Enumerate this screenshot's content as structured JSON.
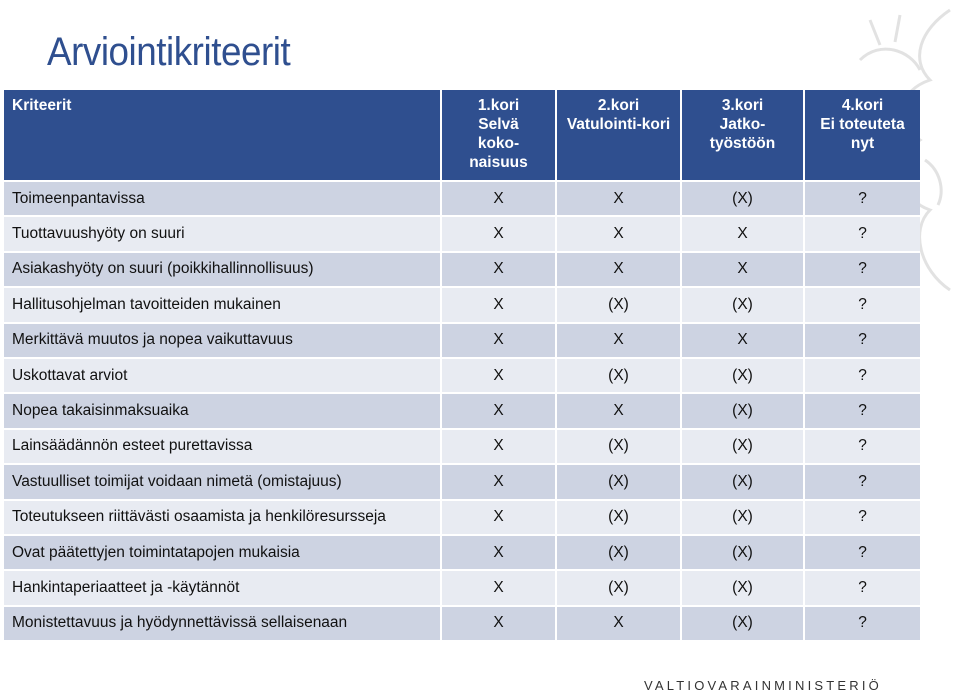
{
  "title": "Arviointikriteerit",
  "table": {
    "header": [
      [
        "Kriteerit"
      ],
      [
        "1.kori",
        "Selvä",
        "koko-",
        "naisuus"
      ],
      [
        "2.kori",
        "Vatulointi-kori"
      ],
      [
        "3.kori",
        "Jatko-",
        "työstöön"
      ],
      [
        "4.kori",
        "Ei toteuteta",
        "nyt"
      ]
    ],
    "rows": [
      [
        "Toimeenpantavissa",
        "X",
        "X",
        "(X)",
        "?"
      ],
      [
        "Tuottavuushyöty on suuri",
        "X",
        "X",
        "X",
        "?"
      ],
      [
        "Asiakashyöty on suuri (poikkihallinnollisuus)",
        "X",
        "X",
        "X",
        "?"
      ],
      [
        "Hallitusohjelman tavoitteiden mukainen",
        "X",
        "(X)",
        "(X)",
        "?"
      ],
      [
        "Merkittävä muutos ja nopea vaikuttavuus",
        "X",
        "X",
        "X",
        "?"
      ],
      [
        "Uskottavat arviot",
        "X",
        "(X)",
        "(X)",
        "?"
      ],
      [
        "Nopea takaisinmaksuaika",
        "X",
        "X",
        "(X)",
        "?"
      ],
      [
        "Lainsäädännön esteet purettavissa",
        "X",
        "(X)",
        "(X)",
        "?"
      ],
      [
        "Vastuulliset toimijat voidaan nimetä (omistajuus)",
        "X",
        "(X)",
        "(X)",
        "?"
      ],
      [
        "Toteutukseen riittävästi osaamista ja henkilöresursseja",
        "X",
        "(X)",
        "(X)",
        "?"
      ],
      [
        "Ovat päätettyjen toimintatapojen mukaisia",
        "X",
        "(X)",
        "(X)",
        "?"
      ],
      [
        "Hankintaperiaatteet ja -käytännöt",
        "X",
        "(X)",
        "(X)",
        "?"
      ],
      [
        "Monistettavuus ja hyödynnettävissä sellaisenaan",
        "X",
        "X",
        "(X)",
        "?"
      ]
    ]
  },
  "footer": "VALTIOVARAINMINISTERIÖ"
}
